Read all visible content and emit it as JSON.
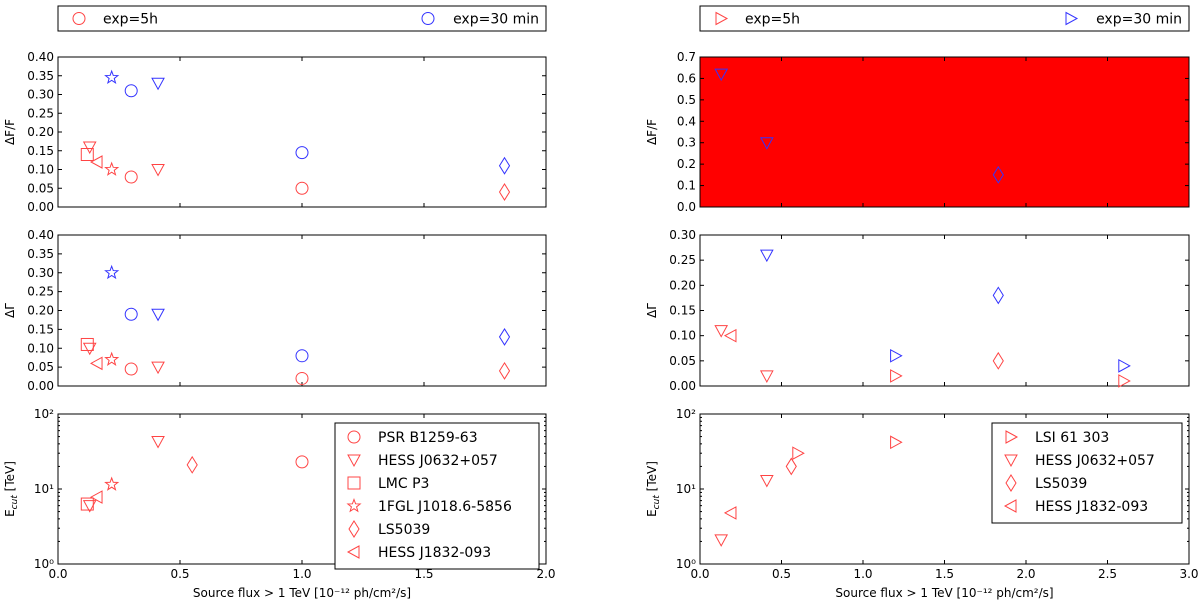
{
  "colors": {
    "exp5h": "#ff4444",
    "exp30": "#3333ff",
    "fill": "#ff0000"
  },
  "chart_data": [
    {
      "id": "top_legend_left",
      "type": "legend",
      "location": "top-left",
      "entries": [
        {
          "label": "exp=5h",
          "marker": "circle",
          "color": "red"
        },
        {
          "label": "exp=30 min",
          "marker": "circle",
          "color": "blue"
        }
      ]
    },
    {
      "id": "top_legend_right",
      "type": "legend",
      "location": "top-right",
      "entries": [
        {
          "label": "exp=5h",
          "marker": "triangle-right",
          "color": "red"
        },
        {
          "label": "exp=30 min",
          "marker": "triangle-right",
          "color": "blue"
        }
      ]
    },
    {
      "id": "left_dF",
      "type": "scatter",
      "xlim": [
        0,
        2
      ],
      "ylim": [
        0,
        0.4
      ],
      "ylabel": "ΔF/F",
      "yticks": [
        "0.00",
        "0.05",
        "0.10",
        "0.15",
        "0.20",
        "0.25",
        "0.30",
        "0.35",
        "0.40"
      ],
      "points": [
        {
          "x": 0.12,
          "y": 0.14,
          "marker": "square",
          "color": "red"
        },
        {
          "x": 0.13,
          "y": 0.16,
          "marker": "triangle-down",
          "color": "red"
        },
        {
          "x": 0.16,
          "y": 0.12,
          "marker": "triangle-left",
          "color": "red"
        },
        {
          "x": 0.22,
          "y": 0.1,
          "marker": "star",
          "color": "red"
        },
        {
          "x": 0.3,
          "y": 0.08,
          "marker": "circle",
          "color": "red"
        },
        {
          "x": 0.41,
          "y": 0.1,
          "marker": "triangle-down",
          "color": "red"
        },
        {
          "x": 1.0,
          "y": 0.05,
          "marker": "circle",
          "color": "red"
        },
        {
          "x": 1.83,
          "y": 0.04,
          "marker": "diamond",
          "color": "red"
        },
        {
          "x": 0.22,
          "y": 0.345,
          "marker": "star",
          "color": "blue"
        },
        {
          "x": 0.3,
          "y": 0.31,
          "marker": "circle",
          "color": "blue"
        },
        {
          "x": 0.41,
          "y": 0.33,
          "marker": "triangle-down",
          "color": "blue"
        },
        {
          "x": 1.0,
          "y": 0.145,
          "marker": "circle",
          "color": "blue"
        },
        {
          "x": 1.83,
          "y": 0.11,
          "marker": "diamond",
          "color": "blue"
        }
      ]
    },
    {
      "id": "left_dG",
      "type": "scatter",
      "xlim": [
        0,
        2
      ],
      "ylim": [
        0,
        0.4
      ],
      "ylabel": "ΔΓ",
      "yticks": [
        "0.00",
        "0.05",
        "0.10",
        "0.15",
        "0.20",
        "0.25",
        "0.30",
        "0.35",
        "0.40"
      ],
      "points": [
        {
          "x": 0.12,
          "y": 0.11,
          "marker": "square",
          "color": "red"
        },
        {
          "x": 0.13,
          "y": 0.1,
          "marker": "triangle-down",
          "color": "red"
        },
        {
          "x": 0.16,
          "y": 0.06,
          "marker": "triangle-left",
          "color": "red"
        },
        {
          "x": 0.22,
          "y": 0.07,
          "marker": "star",
          "color": "red"
        },
        {
          "x": 0.3,
          "y": 0.045,
          "marker": "circle",
          "color": "red"
        },
        {
          "x": 0.41,
          "y": 0.05,
          "marker": "triangle-down",
          "color": "red"
        },
        {
          "x": 1.0,
          "y": 0.02,
          "marker": "circle",
          "color": "red"
        },
        {
          "x": 1.83,
          "y": 0.04,
          "marker": "diamond",
          "color": "red"
        },
        {
          "x": 0.22,
          "y": 0.3,
          "marker": "star",
          "color": "blue"
        },
        {
          "x": 0.3,
          "y": 0.19,
          "marker": "circle",
          "color": "blue"
        },
        {
          "x": 0.41,
          "y": 0.19,
          "marker": "triangle-down",
          "color": "blue"
        },
        {
          "x": 1.0,
          "y": 0.08,
          "marker": "circle",
          "color": "blue"
        },
        {
          "x": 1.83,
          "y": 0.13,
          "marker": "diamond",
          "color": "blue"
        }
      ]
    },
    {
      "id": "left_E",
      "type": "scatter",
      "scale": "log",
      "xlim": [
        0,
        2
      ],
      "ylim": [
        1,
        100
      ],
      "ylabel": "E_cut [TeV]",
      "xlabel": "Source flux > 1 TeV [10⁻¹² ph/cm²/s]",
      "xticks": [
        "0.0",
        "0.5",
        "1.0",
        "1.5",
        "2.0"
      ],
      "yticks": [
        "10⁰",
        "10¹",
        "10²"
      ],
      "legend": {
        "location": "right",
        "entries": [
          {
            "label": "PSR B1259-63",
            "marker": "circle"
          },
          {
            "label": "HESS J0632+057",
            "marker": "triangle-down"
          },
          {
            "label": "LMC P3",
            "marker": "square"
          },
          {
            "label": "1FGL J1018.6-5856",
            "marker": "star"
          },
          {
            "label": "LS5039",
            "marker": "diamond"
          },
          {
            "label": "HESS J1832-093",
            "marker": "triangle-left"
          }
        ]
      },
      "points": [
        {
          "x": 0.12,
          "y": 6.3,
          "marker": "square",
          "color": "red"
        },
        {
          "x": 0.13,
          "y": 6.0,
          "marker": "triangle-down",
          "color": "red"
        },
        {
          "x": 0.16,
          "y": 7.8,
          "marker": "triangle-left",
          "color": "red"
        },
        {
          "x": 0.22,
          "y": 11.5,
          "marker": "star",
          "color": "red"
        },
        {
          "x": 0.41,
          "y": 43,
          "marker": "triangle-down",
          "color": "red"
        },
        {
          "x": 0.55,
          "y": 21,
          "marker": "diamond",
          "color": "red"
        },
        {
          "x": 1.0,
          "y": 23,
          "marker": "circle",
          "color": "red"
        }
      ]
    },
    {
      "id": "right_dF",
      "type": "scatter",
      "xlim": [
        0,
        3
      ],
      "ylim": [
        0,
        0.7
      ],
      "ylabel": "ΔF/F",
      "background": "filled red",
      "yticks": [
        "0.0",
        "0.1",
        "0.2",
        "0.3",
        "0.4",
        "0.5",
        "0.6",
        "0.7"
      ],
      "points": [
        {
          "x": 0.13,
          "y": 0.62,
          "marker": "triangle-down",
          "color": "blue"
        },
        {
          "x": 0.41,
          "y": 0.3,
          "marker": "triangle-down",
          "color": "blue"
        },
        {
          "x": 1.83,
          "y": 0.15,
          "marker": "diamond",
          "color": "blue"
        }
      ]
    },
    {
      "id": "right_dG",
      "type": "scatter",
      "xlim": [
        0,
        3
      ],
      "ylim": [
        0,
        0.3
      ],
      "ylabel": "ΔΓ",
      "yticks": [
        "0.00",
        "0.05",
        "0.10",
        "0.15",
        "0.20",
        "0.25",
        "0.30"
      ],
      "points": [
        {
          "x": 0.13,
          "y": 0.11,
          "marker": "triangle-down",
          "color": "red"
        },
        {
          "x": 0.19,
          "y": 0.1,
          "marker": "triangle-left",
          "color": "red"
        },
        {
          "x": 0.41,
          "y": 0.02,
          "marker": "triangle-down",
          "color": "red"
        },
        {
          "x": 1.2,
          "y": 0.02,
          "marker": "triangle-right",
          "color": "red"
        },
        {
          "x": 1.83,
          "y": 0.05,
          "marker": "diamond",
          "color": "red"
        },
        {
          "x": 2.6,
          "y": 0.01,
          "marker": "triangle-right",
          "color": "red"
        },
        {
          "x": 0.41,
          "y": 0.26,
          "marker": "triangle-down",
          "color": "blue"
        },
        {
          "x": 1.2,
          "y": 0.06,
          "marker": "triangle-right",
          "color": "blue"
        },
        {
          "x": 1.83,
          "y": 0.18,
          "marker": "diamond",
          "color": "blue"
        },
        {
          "x": 2.6,
          "y": 0.04,
          "marker": "triangle-right",
          "color": "blue"
        }
      ]
    },
    {
      "id": "right_E",
      "type": "scatter",
      "scale": "log",
      "xlim": [
        0,
        3
      ],
      "ylim": [
        1,
        100
      ],
      "ylabel": "E_cut [TeV]",
      "xlabel": "Source flux > 1 TeV [10⁻¹² ph/cm²/s]",
      "xticks": [
        "0.0",
        "0.5",
        "1.0",
        "1.5",
        "2.0",
        "2.5",
        "3.0"
      ],
      "yticks": [
        "10⁰",
        "10¹",
        "10²"
      ],
      "legend": {
        "location": "right",
        "entries": [
          {
            "label": "LSI 61 303",
            "marker": "triangle-right"
          },
          {
            "label": "HESS J0632+057",
            "marker": "triangle-down"
          },
          {
            "label": "LS5039",
            "marker": "diamond"
          },
          {
            "label": "HESS J1832-093",
            "marker": "triangle-left"
          }
        ]
      },
      "points": [
        {
          "x": 0.13,
          "y": 2.1,
          "marker": "triangle-down",
          "color": "red"
        },
        {
          "x": 0.19,
          "y": 4.8,
          "marker": "triangle-left",
          "color": "red"
        },
        {
          "x": 0.41,
          "y": 13,
          "marker": "triangle-down",
          "color": "red"
        },
        {
          "x": 0.56,
          "y": 20,
          "marker": "diamond",
          "color": "red"
        },
        {
          "x": 0.6,
          "y": 30,
          "marker": "triangle-right",
          "color": "red"
        },
        {
          "x": 1.2,
          "y": 42,
          "marker": "triangle-right",
          "color": "red"
        }
      ]
    }
  ]
}
